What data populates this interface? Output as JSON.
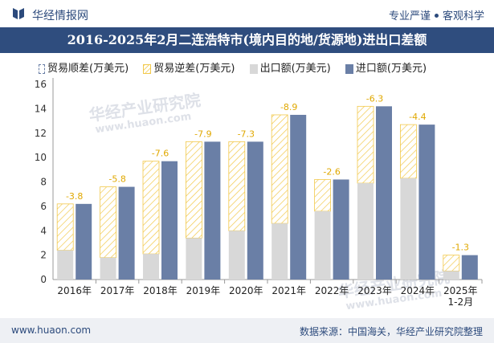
{
  "header": {
    "site_name": "华经情报网",
    "tagline_left": "专业严谨",
    "tagline_right": "客观科学"
  },
  "footer": {
    "url": "www.huaon.com",
    "source": "数据来源：中国海关，华经产业研究院整理"
  },
  "watermark": {
    "text_cn": "华经产业研究院",
    "text_url": "www.huaon.com"
  },
  "colors": {
    "title_bg": "#2f4d7e",
    "export": "#d8d8d8",
    "import": "#6a7fa6",
    "deficit_hatch": "#f2c94c",
    "surplus": "#6a7fa6"
  },
  "chart_data": {
    "type": "bar",
    "title": "2016-2025年2月二连浩特市(境内目的地/货源地)进出口差额",
    "categories": [
      "2016年",
      "2017年",
      "2018年",
      "2019年",
      "2020年",
      "2021年",
      "2022年",
      "2023年",
      "2024年",
      "2025年\n1-2月"
    ],
    "series": [
      {
        "name": "出口额(万美元)",
        "values": [
          2.4,
          1.8,
          2.1,
          3.4,
          4.0,
          4.6,
          5.6,
          7.9,
          8.3,
          0.7
        ]
      },
      {
        "name": "进口额(万美元)",
        "values": [
          6.2,
          7.6,
          9.7,
          11.3,
          11.3,
          13.5,
          8.2,
          14.2,
          12.7,
          2.0
        ]
      },
      {
        "name": "贸易逆差(万美元)",
        "values": [
          -3.8,
          -5.8,
          -7.6,
          -7.9,
          -7.3,
          -8.9,
          -2.6,
          -6.3,
          -4.4,
          -1.3
        ]
      }
    ],
    "legend": [
      "贸易顺差(万美元)",
      "贸易逆差(万美元)",
      "出口额(万美元)",
      "进口额(万美元)"
    ],
    "data_labels": [
      "-3.8",
      "-5.8",
      "-7.6",
      "-7.9",
      "-7.3",
      "-8.9",
      "-2.6",
      "-6.3",
      "-4.4",
      "-1.3"
    ],
    "ylim": [
      0,
      16
    ],
    "yticks": [
      0,
      2,
      4,
      6,
      8,
      10,
      12,
      14,
      16
    ],
    "legend_position": "top-left",
    "grid": false
  }
}
